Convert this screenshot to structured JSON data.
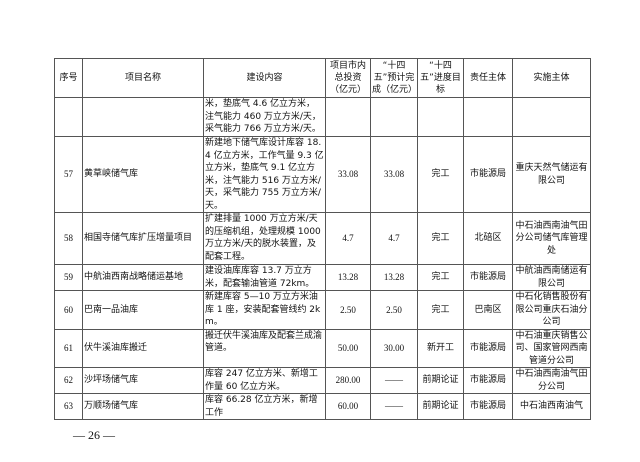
{
  "table": {
    "headers": [
      "序号",
      "项目名称",
      "建设内容",
      "项目市内总投资（亿元）",
      "“十四五”预计完成（亿元）",
      "“十四五”进度目标",
      "责任主体",
      "实施主体"
    ],
    "rows": [
      {
        "no": "",
        "name": "",
        "content": "米，垫底气 4.6 亿立方米，注气能力 460 万立方米/天，采气能力 766 万立方米/天。",
        "total": "",
        "plan": "",
        "target": "",
        "resp": "",
        "impl": ""
      },
      {
        "no": "57",
        "name": "黄草峡储气库",
        "content": "新建地下储气库设计库容 18.4 亿立方米，工作气量 9.3 亿立方米，垫底气 9.1 亿立方米，注气能力 516 万立方米/天，采气能力 755 万立方米/天。",
        "total": "33.08",
        "plan": "33.08",
        "target": "完工",
        "resp": "市能源局",
        "impl": "重庆天然气储运有限公司"
      },
      {
        "no": "58",
        "name": "相国寺储气库扩压增量项目",
        "content": "扩建排量 1000 万立方米/天的压缩机组，处理规模 1000 万立方米/天的脱水装置，及配套工程。",
        "total": "4.7",
        "plan": "4.7",
        "target": "完工",
        "resp": "北碚区",
        "impl": "中石油西南油气田分公司储气库管理处"
      },
      {
        "no": "59",
        "name": "中航油西南战略储运基地",
        "content": "建设油库库容 13.7 万立方米，配套输油管道 72km。",
        "total": "13.28",
        "plan": "13.28",
        "target": "完工",
        "resp": "市能源局",
        "impl": "中航油西南储运有限公司"
      },
      {
        "no": "60",
        "name": "巴南一品油库",
        "content": "新建库容 5—10 万立方米油库 1 座，安装配套管线约 2km。",
        "total": "2.50",
        "plan": "2.50",
        "target": "完工",
        "resp": "巴南区",
        "impl": "中石化销售股份有限公司重庆石油分公司"
      },
      {
        "no": "61",
        "name": "伏牛溪油库搬迁",
        "content": "搬迁伏牛溪油库及配套兰成渝管道。",
        "total": "50.00",
        "plan": "30.00",
        "target": "新开工",
        "resp": "市能源局",
        "impl": "中石油重庆销售公司、国家管网西南管道分公司"
      },
      {
        "no": "62",
        "name": "沙坪场储气库",
        "content": "库容 247 亿立方米、新增工作量 60 亿立方米。",
        "total": "280.00",
        "plan": "——",
        "target": "前期论证",
        "resp": "市能源局",
        "impl": "中石油西南油气田分公司"
      },
      {
        "no": "63",
        "name": "万顺场储气库",
        "content": "库容 66.28 亿立方米，新增工作",
        "total": "60.00",
        "plan": "——",
        "target": "前期论证",
        "resp": "市能源局",
        "impl": "中石油西南油气"
      }
    ]
  },
  "page_number": "— 26 —"
}
